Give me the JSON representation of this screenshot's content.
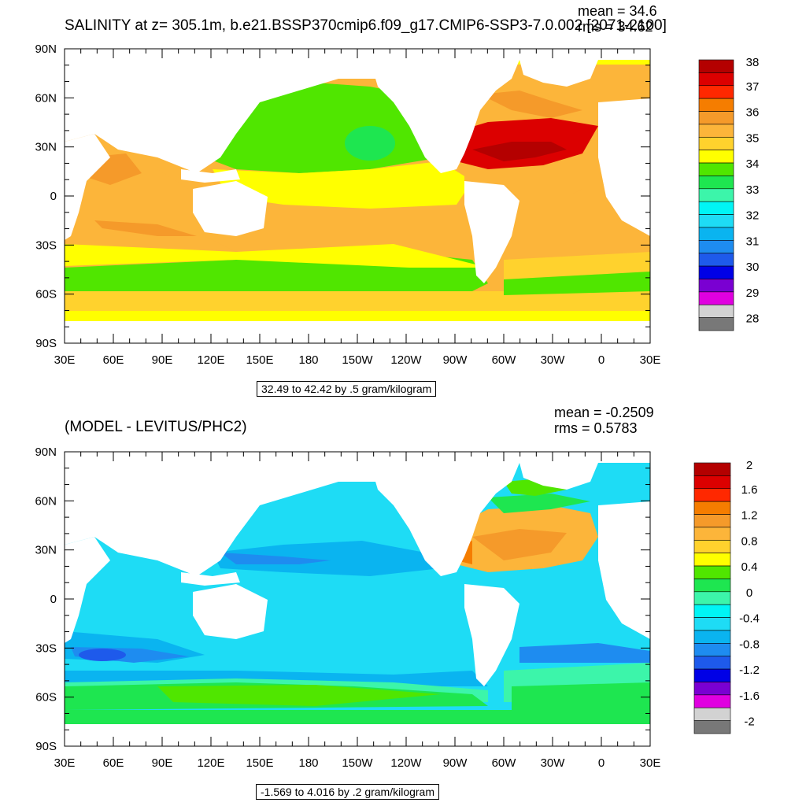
{
  "top": {
    "title": "SALINITY at z= 305.1m, b.e21.BSSP370cmip6.f09_g17.CMIP6-SSP3-7.0.002 [2071-2100]",
    "mean_text": "mean = 34.6",
    "rms_text": "rms = 34.62",
    "units_text": "32.49 to 42.42 by .5 gram/kilogram",
    "colorbar": {
      "labels": [
        "38",
        "37",
        "36",
        "35",
        "34",
        "33",
        "32",
        "31",
        "30",
        "29",
        "28"
      ],
      "colors": [
        "#b40000",
        "#dc0000",
        "#ff2800",
        "#f57d00",
        "#f59a2a",
        "#fcb53a",
        "#ffd22d",
        "#ffff00",
        "#50e600",
        "#1ee650",
        "#3cf5aa",
        "#00f5f5",
        "#1edcf5",
        "#0ab4f0",
        "#1e8cf0",
        "#1e5aeb",
        "#0000e6",
        "#7a00d2",
        "#e000e0",
        "#d2d2d2",
        "#787878"
      ]
    }
  },
  "bottom": {
    "title": "(MODEL - LEVITUS/PHC2)",
    "mean_text": "mean = -0.2509",
    "rms_text": "rms = 0.5783",
    "units_text": "-1.569 to 4.016 by .2 gram/kilogram",
    "colorbar": {
      "labels": [
        "2",
        "1.6",
        "1.2",
        "0.8",
        "0.4",
        "0",
        "-0.4",
        "-0.8",
        "-1.2",
        "-1.6",
        "-2"
      ],
      "colors": [
        "#b40000",
        "#dc0000",
        "#ff2800",
        "#f57d00",
        "#f59a2a",
        "#fcb53a",
        "#ffd22d",
        "#ffff00",
        "#50e600",
        "#1ee650",
        "#3cf5aa",
        "#00f5f5",
        "#1edcf5",
        "#0ab4f0",
        "#1e8cf0",
        "#1e5aeb",
        "#0000e6",
        "#7a00d2",
        "#e000e0",
        "#d2d2d2",
        "#787878"
      ]
    }
  },
  "axes": {
    "lat_labels": [
      "90N",
      "60N",
      "30N",
      "0",
      "30S",
      "60S",
      "90S"
    ],
    "lon_labels": [
      "30E",
      "60E",
      "90E",
      "120E",
      "150E",
      "180",
      "150W",
      "120W",
      "90W",
      "60W",
      "30W",
      "0",
      "30E"
    ]
  },
  "colors": {
    "land": "#ffffff",
    "frame": "#000000"
  }
}
